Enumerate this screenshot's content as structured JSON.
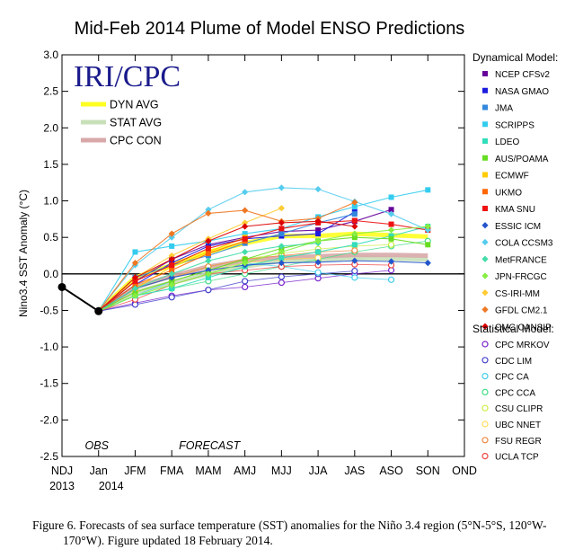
{
  "chart_data": {
    "type": "line",
    "title": "Mid-Feb 2014 Plume of Model ENSO Predictions",
    "watermark": "IRI/CPC",
    "ylabel": "Nino3.4 SST Anomaly (°C)",
    "xlabel": "",
    "ylim": [
      -2.5,
      3.0
    ],
    "yticks": [
      "3.0",
      "2.5",
      "2.0",
      "1.5",
      "1.0",
      "0.5",
      "0.0",
      "-0.5",
      "-1.0",
      "-1.5",
      "-2.0",
      "-2.5"
    ],
    "categories": [
      "NDJ",
      "Jan",
      "JFM",
      "FMA",
      "MAM",
      "AMJ",
      "MJJ",
      "JJA",
      "JAS",
      "ASO",
      "SON",
      "OND"
    ],
    "year_labels": [
      "2013",
      "2014"
    ],
    "obs_label": "OBS",
    "forecast_label": "FORECAST",
    "observed": [
      -0.18,
      -0.51
    ],
    "averages": [
      {
        "name": "DYN AVG",
        "color": "#ffff22",
        "values": [
          -0.51,
          -0.05,
          0.12,
          0.3,
          0.42,
          0.52,
          0.52,
          0.55,
          0.53,
          0.51
        ]
      },
      {
        "name": "STAT AVG",
        "color": "#c8e0b8",
        "values": [
          -0.51,
          -0.25,
          -0.12,
          0.0,
          0.1,
          0.18,
          0.2,
          0.22,
          0.21,
          0.2
        ]
      },
      {
        "name": "CPC CON",
        "color": "#d8a8a8",
        "values": [
          -0.51,
          -0.18,
          -0.03,
          0.1,
          0.18,
          0.22,
          0.24,
          0.26,
          0.26,
          0.25
        ]
      }
    ],
    "dynamical_header": "Dynamical Model:",
    "statistical_header": "Statistical Model:",
    "dynamical_models": [
      {
        "name": "NCEP CFSv2",
        "color": "#660099",
        "marker": "square",
        "values": [
          -0.51,
          -0.1,
          0.2,
          0.4,
          0.5,
          0.58,
          0.6,
          0.72,
          0.88
        ]
      },
      {
        "name": "NASA GMAO",
        "color": "#1c1cde",
        "marker": "square",
        "values": [
          -0.51,
          -0.15,
          0.15,
          0.38,
          0.48,
          0.52,
          0.55,
          0.85
        ]
      },
      {
        "name": "JMA",
        "color": "#3388dd",
        "marker": "square",
        "values": [
          -0.51,
          -0.05,
          0.12,
          0.25,
          0.42,
          0.55,
          0.7,
          0.82
        ]
      },
      {
        "name": "SCRIPPS",
        "color": "#33ccee",
        "marker": "square",
        "values": [
          -0.51,
          0.3,
          0.38,
          0.45,
          0.55,
          0.62,
          0.78,
          0.92,
          1.05,
          1.15
        ]
      },
      {
        "name": "LDEO",
        "color": "#33ddbb",
        "marker": "square",
        "values": [
          -0.51,
          -0.3,
          -0.2,
          -0.05,
          0.1,
          0.22,
          0.3,
          0.4,
          0.52,
          0.65
        ]
      },
      {
        "name": "AUS/POAMA",
        "color": "#66dd22",
        "marker": "square",
        "values": [
          -0.51,
          -0.25,
          -0.1,
          0.05,
          0.2,
          0.35,
          0.45,
          0.5,
          0.48,
          0.4
        ]
      },
      {
        "name": "ECMWF",
        "color": "#ffcc00",
        "marker": "square",
        "values": [
          -0.51,
          -0.2,
          0.1,
          0.3,
          0.5
        ]
      },
      {
        "name": "UKMO",
        "color": "#ff6600",
        "marker": "square",
        "values": [
          -0.51,
          -0.15,
          0.05,
          0.28,
          0.45
        ]
      },
      {
        "name": "KMA SNU",
        "color": "#ee1111",
        "marker": "square",
        "values": [
          -0.51,
          -0.1,
          0.12,
          0.35,
          0.48,
          0.62,
          0.7,
          0.73,
          0.68,
          0.6
        ]
      },
      {
        "name": "ESSIC ICM",
        "color": "#2255cc",
        "marker": "diamond",
        "values": [
          -0.51,
          -0.2,
          -0.05,
          0.05,
          0.12,
          0.15,
          0.16,
          0.18,
          0.17,
          0.15
        ]
      },
      {
        "name": "COLA CCSM3",
        "color": "#55ccee",
        "marker": "diamond",
        "values": [
          -0.51,
          0.12,
          0.5,
          0.88,
          1.12,
          1.18,
          1.16,
          0.99,
          0.82,
          0.6
        ]
      },
      {
        "name": "MetFRANCE",
        "color": "#44ddaa",
        "marker": "diamond",
        "values": [
          -0.51,
          -0.2,
          0.0,
          0.18,
          0.3,
          0.38,
          0.42
        ]
      },
      {
        "name": "JPN-FRCGC",
        "color": "#88ee44",
        "marker": "diamond",
        "values": [
          -0.51,
          -0.3,
          -0.15,
          0.0,
          0.15,
          0.3,
          0.45,
          0.55,
          0.6,
          0.65
        ]
      },
      {
        "name": "CS-IRI-MM",
        "color": "#ffcc33",
        "marker": "diamond",
        "values": [
          -0.51,
          -0.05,
          0.25,
          0.48,
          0.7,
          0.9
        ]
      },
      {
        "name": "GFDL CM2.1",
        "color": "#ee7722",
        "marker": "diamond",
        "values": [
          -0.51,
          0.15,
          0.55,
          0.83,
          0.87,
          0.72,
          0.76,
          0.98
        ]
      },
      {
        "name": "CMC CANSIP",
        "color": "#dd0000",
        "marker": "diamond",
        "values": [
          -0.51,
          -0.05,
          0.2,
          0.45,
          0.65,
          0.7,
          0.72,
          0.65
        ]
      }
    ],
    "statistical_models": [
      {
        "name": "CPC MRKOV",
        "color": "#7722cc",
        "values": [
          -0.51,
          -0.4,
          -0.3,
          -0.22,
          -0.18,
          -0.12,
          -0.06,
          0.0,
          0.05
        ]
      },
      {
        "name": "CDC LIM",
        "color": "#4444cc",
        "values": [
          -0.51,
          -0.42,
          -0.32,
          -0.22,
          -0.1,
          -0.04,
          0.0,
          0.04
        ]
      },
      {
        "name": "CPC CA",
        "color": "#44ccee",
        "values": [
          -0.51,
          -0.3,
          -0.1,
          0.05,
          0.15,
          0.1,
          0.02,
          -0.05,
          -0.08
        ]
      },
      {
        "name": "CPC CCA",
        "color": "#44dd88",
        "values": [
          -0.51,
          -0.3,
          -0.2,
          -0.1,
          0.0,
          0.1,
          0.2,
          0.3,
          0.38,
          0.45
        ]
      },
      {
        "name": "CSU CLIPR",
        "color": "#ccee44",
        "values": [
          -0.51,
          -0.2,
          -0.05,
          0.1,
          0.2,
          0.28,
          0.34,
          0.38,
          0.4
        ]
      },
      {
        "name": "UBC NNET",
        "color": "#ffdd55",
        "values": [
          -0.51,
          -0.25,
          -0.1,
          0.05,
          0.15,
          0.2,
          0.22
        ]
      },
      {
        "name": "FSU REGR",
        "color": "#ee8844",
        "values": [
          -0.51,
          -0.2,
          -0.05,
          0.1,
          0.2,
          0.25,
          0.3,
          0.32
        ]
      },
      {
        "name": "UCLA TCP",
        "color": "#ee4444",
        "values": [
          -0.51,
          -0.35,
          -0.15,
          0.0,
          0.05,
          0.1,
          0.12,
          0.13,
          0.12
        ]
      }
    ]
  },
  "caption": {
    "line1": "Figure 6. Forecasts of sea surface temperature (SST) anomalies for the Niño 3.4 region (5°N-5°S, 120°W-",
    "line2": "170°W).  Figure updated 18 February 2014."
  }
}
